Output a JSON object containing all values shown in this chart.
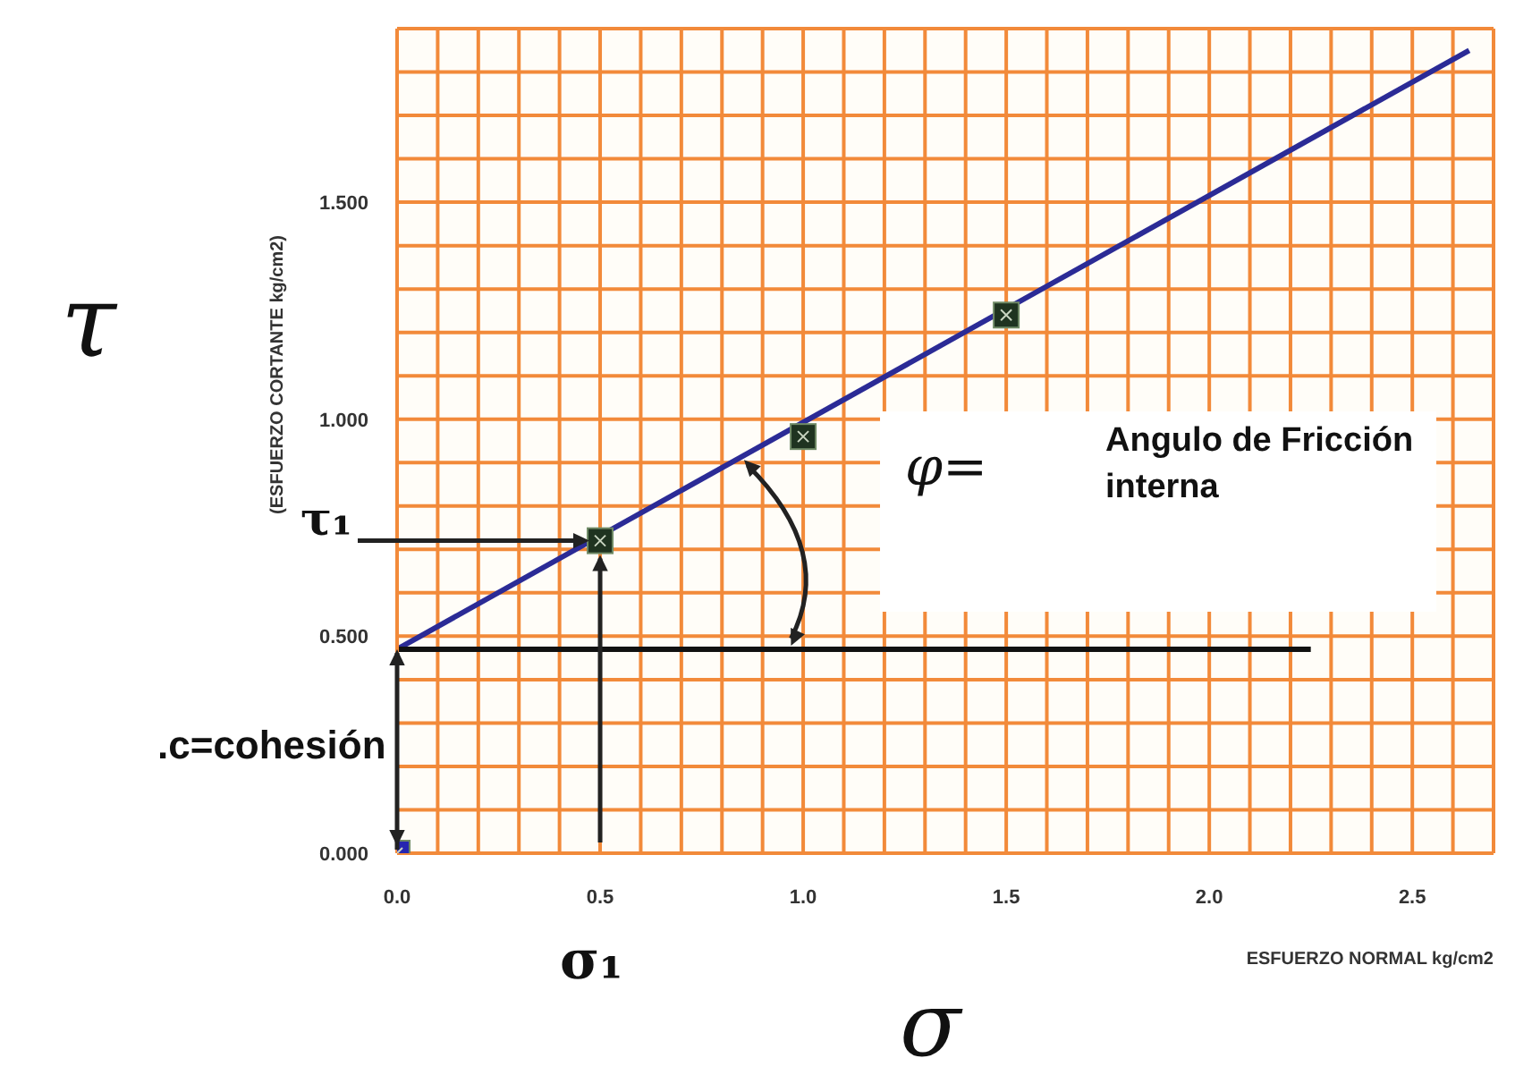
{
  "chart_data": {
    "type": "line",
    "xlabel": "ESFUERZO NORMAL kg/cm2",
    "ylabel": "(ESFUERZO CORTANTE kg/cm2)",
    "xlim": [
      0,
      2.7
    ],
    "xticks": [
      {
        "value": 0,
        "label": "0.0"
      },
      {
        "value": 0.1,
        "label": null
      },
      {
        "value": 0.2,
        "label": null
      },
      {
        "value": 0.3,
        "label": null
      },
      {
        "value": 0.4,
        "label": null
      },
      {
        "value": 0.5,
        "label": "0.5"
      },
      {
        "value": 0.6,
        "label": null
      },
      {
        "value": 0.7,
        "label": null
      },
      {
        "value": 0.8,
        "label": null
      },
      {
        "value": 0.9,
        "label": null
      },
      {
        "value": 1,
        "label": "1.0"
      },
      {
        "value": 1.1,
        "label": null
      },
      {
        "value": 1.2,
        "label": null
      },
      {
        "value": 1.3,
        "label": null
      },
      {
        "value": 1.4,
        "label": null
      },
      {
        "value": 1.5,
        "label": "1.5"
      },
      {
        "value": 1.6,
        "label": null
      },
      {
        "value": 1.7,
        "label": null
      },
      {
        "value": 1.8,
        "label": null
      },
      {
        "value": 1.9,
        "label": null
      },
      {
        "value": 2,
        "label": "2.0"
      },
      {
        "value": 2.1,
        "label": null
      },
      {
        "value": 2.2,
        "label": null
      },
      {
        "value": 2.3,
        "label": null
      },
      {
        "value": 2.4,
        "label": null
      },
      {
        "value": 2.5,
        "label": "2.5"
      },
      {
        "value": 2.6,
        "label": null
      },
      {
        "value": 2.7,
        "label": null
      }
    ],
    "ylim": [
      0,
      1.9
    ],
    "yticks": [
      {
        "value": 0,
        "label": "0.000"
      },
      {
        "value": 0.1,
        "label": null
      },
      {
        "value": 0.2,
        "label": null
      },
      {
        "value": 0.3,
        "label": null
      },
      {
        "value": 0.4,
        "label": null
      },
      {
        "value": 0.5,
        "label": "0.500"
      },
      {
        "value": 0.6,
        "label": null
      },
      {
        "value": 0.7,
        "label": null
      },
      {
        "value": 0.8,
        "label": null
      },
      {
        "value": 0.9,
        "label": null
      },
      {
        "value": 1,
        "label": "1.000"
      },
      {
        "value": 1.1,
        "label": null
      },
      {
        "value": 1.2,
        "label": null
      },
      {
        "value": 1.3,
        "label": null
      },
      {
        "value": 1.4,
        "label": null
      },
      {
        "value": 1.5,
        "label": "1.500"
      },
      {
        "value": 1.6,
        "label": null
      },
      {
        "value": 1.7,
        "label": null
      },
      {
        "value": 1.8,
        "label": null
      },
      {
        "value": 1.9,
        "label": null
      }
    ],
    "grid": true,
    "series": [
      {
        "color": "#2b2b96",
        "x": [
          0,
          2.64
        ],
        "values": [
          0.47,
          1.85
        ],
        "marker": "none"
      },
      {
        "type": "scatter",
        "color": "#1f3320",
        "x": [
          0.5,
          1.0,
          1.5
        ],
        "values": [
          0.72,
          0.96,
          1.24
        ],
        "marker": "square"
      },
      {
        "type": "scatter",
        "color": "#2626b0",
        "x": [
          0
        ],
        "values": [
          0
        ],
        "marker": "square"
      },
      {
        "color": "#111111",
        "x": [
          0,
          2.25
        ],
        "values": [
          0.47,
          0.47
        ],
        "marker": "none"
      }
    ],
    "annotations": [
      "τ",
      {
        "text": "τ₁",
        "x": 0.5,
        "y": 0.72
      },
      ".c=cohesión",
      "σ₁",
      "σ",
      "φ=",
      "Angulo de Fricción interna"
    ]
  }
}
